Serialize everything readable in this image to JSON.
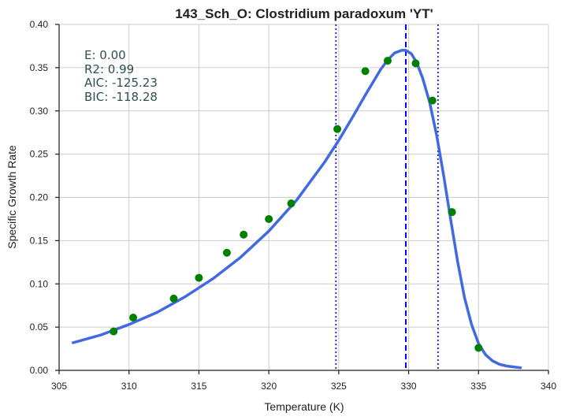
{
  "chart_data": {
    "type": "scatter",
    "title": "143_Sch_O: Clostridium paradoxum 'YT'",
    "xlabel": "Temperature (K)",
    "ylabel": "Specific Growth Rate",
    "xlim": [
      305,
      340
    ],
    "ylim": [
      0.0,
      0.4
    ],
    "xticks": [
      305,
      310,
      315,
      320,
      325,
      330,
      335,
      340
    ],
    "xtick_labels": [
      "305",
      "310",
      "315",
      "320",
      "325",
      "330",
      "335",
      "340"
    ],
    "yticks": [
      0.0,
      0.05,
      0.1,
      0.15,
      0.2,
      0.25,
      0.3,
      0.35,
      0.4
    ],
    "ytick_labels": [
      "0.00",
      "0.05",
      "0.10",
      "0.15",
      "0.20",
      "0.25",
      "0.30",
      "0.35",
      "0.40"
    ],
    "grid": true,
    "stats": [
      "E:  0.00",
      "R2:  0.99",
      "AIC: -125.23",
      "BIC: -118.28"
    ],
    "points": {
      "color": "#008000",
      "x": [
        308.9,
        310.3,
        313.2,
        315.0,
        317.0,
        318.2,
        320.0,
        321.6,
        324.9,
        326.9,
        328.5,
        330.5,
        331.7,
        333.1,
        335.0
      ],
      "y": [
        0.045,
        0.061,
        0.083,
        0.107,
        0.136,
        0.157,
        0.175,
        0.193,
        0.279,
        0.346,
        0.358,
        0.355,
        0.312,
        0.183,
        0.026
      ]
    },
    "fit_curve": {
      "color": "#4169e1",
      "x": [
        306.0,
        308.0,
        310.0,
        312.0,
        314.0,
        316.0,
        318.0,
        320.0,
        322.0,
        324.0,
        325.0,
        326.0,
        327.0,
        328.0,
        328.5,
        329.0,
        329.5,
        329.8,
        330.2,
        330.6,
        331.0,
        331.5,
        332.0,
        332.5,
        333.0,
        333.5,
        334.0,
        334.5,
        335.0,
        335.5,
        336.0,
        336.5,
        337.0,
        337.5,
        338.0
      ],
      "y": [
        0.032,
        0.041,
        0.053,
        0.067,
        0.085,
        0.106,
        0.131,
        0.161,
        0.197,
        0.241,
        0.266,
        0.293,
        0.321,
        0.348,
        0.359,
        0.367,
        0.37,
        0.37,
        0.366,
        0.355,
        0.338,
        0.31,
        0.272,
        0.226,
        0.175,
        0.126,
        0.084,
        0.053,
        0.031,
        0.018,
        0.011,
        0.007,
        0.005,
        0.004,
        0.003
      ]
    },
    "vlines": [
      {
        "x": 324.8,
        "style": "dotted",
        "color": "#0000ff"
      },
      {
        "x": 329.8,
        "style": "dashed",
        "color": "#0000ff"
      },
      {
        "x": 332.1,
        "style": "dotted",
        "color": "#0000ff"
      }
    ]
  }
}
